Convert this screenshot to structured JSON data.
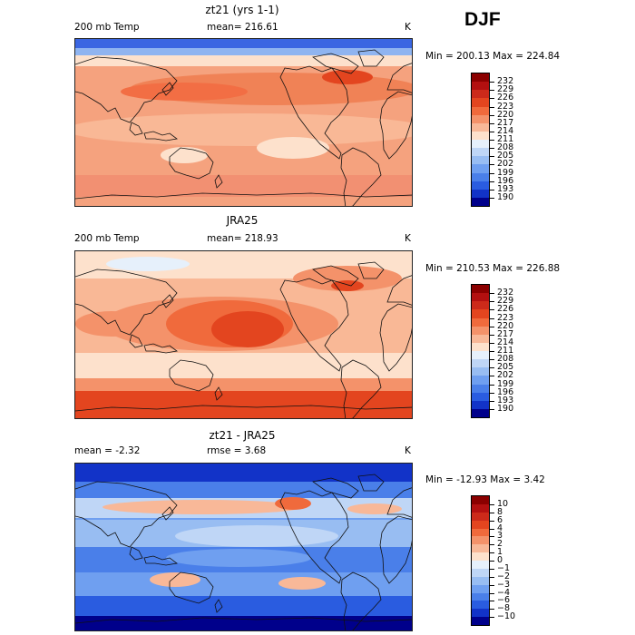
{
  "season": "DJF",
  "panels": [
    {
      "title": "zt21 (yrs 1-1)",
      "left_label": "200 mb Temp",
      "center_label": "mean= 216.61",
      "units": "K",
      "minmax": "Min = 200.13 Max = 224.84"
    },
    {
      "title": "JRA25",
      "left_label": "200 mb Temp",
      "center_label": "mean= 218.93",
      "units": "K",
      "minmax": "Min = 210.53 Max = 226.88"
    },
    {
      "title": "zt21 - JRA25",
      "left_label": "mean =   -2.32",
      "center_label": "rmse =   3.68",
      "units": "K",
      "minmax": "Min = -12.93 Max =   3.42"
    }
  ],
  "colorbars": {
    "abs": {
      "labels": [
        "232",
        "229",
        "226",
        "223",
        "220",
        "217",
        "214",
        "211",
        "208",
        "205",
        "202",
        "199",
        "196",
        "193",
        "190"
      ],
      "colors": [
        "#8b0000",
        "#b31010",
        "#cc2a1a",
        "#e3451f",
        "#f06a3c",
        "#f4926a",
        "#f8b898",
        "#fde1cc",
        "#e6f0fb",
        "#bfd6f6",
        "#98bdf2",
        "#6f9ff0",
        "#4a7fe9",
        "#2a5ce0",
        "#1233c8",
        "#00008b"
      ]
    },
    "diff": {
      "labels": [
        "10",
        "8",
        "6",
        "4",
        "3",
        "2",
        "1",
        "0",
        "−1",
        "−2",
        "−3",
        "−4",
        "−6",
        "−8",
        "−10"
      ],
      "colors": [
        "#8b0000",
        "#b31010",
        "#cc2a1a",
        "#e3451f",
        "#f06a3c",
        "#f4926a",
        "#f8b898",
        "#fde1cc",
        "#e6f0fb",
        "#bfd6f6",
        "#98bdf2",
        "#6f9ff0",
        "#4a7fe9",
        "#2a5ce0",
        "#1233c8",
        "#00008b"
      ]
    }
  }
}
